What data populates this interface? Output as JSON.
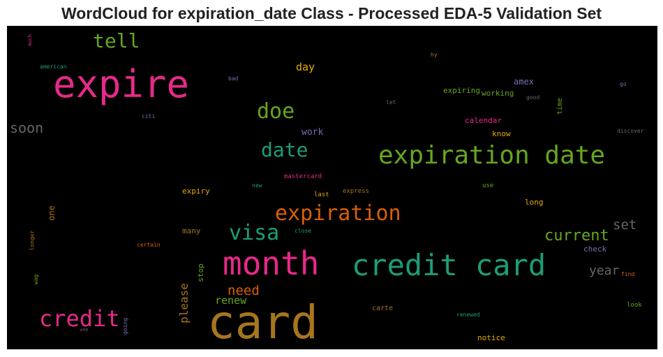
{
  "chart_data": {
    "type": "wordcloud",
    "title": "WordCloud for expiration_date Class - Processed EDA-5 Validation Set",
    "background": "#000000",
    "words": [
      {
        "text": "card",
        "color": "#a6761d"
      },
      {
        "text": "expire",
        "color": "#e7298a"
      },
      {
        "text": "credit card",
        "color": "#1b9e77"
      },
      {
        "text": "month",
        "color": "#e7298a"
      },
      {
        "text": "expiration date",
        "color": "#66a61e"
      },
      {
        "text": "expiration",
        "color": "#d95f02"
      },
      {
        "text": "credit",
        "color": "#e7298a"
      },
      {
        "text": "visa",
        "color": "#1b9e77"
      },
      {
        "text": "date",
        "color": "#1b9e77"
      },
      {
        "text": "doe",
        "color": "#66a61e"
      },
      {
        "text": "tell",
        "color": "#66a61e"
      },
      {
        "text": "current",
        "color": "#66a61e"
      },
      {
        "text": "soon",
        "color": "#666666"
      },
      {
        "text": "set",
        "color": "#666666"
      },
      {
        "text": "need",
        "color": "#d95f02"
      },
      {
        "text": "year",
        "color": "#666666"
      },
      {
        "text": "please",
        "color": "#a6761d"
      },
      {
        "text": "renew",
        "color": "#66a61e"
      },
      {
        "text": "day",
        "color": "#e6ab02"
      },
      {
        "text": "work",
        "color": "#7570b3"
      },
      {
        "text": "amex",
        "color": "#7570b3"
      },
      {
        "text": "expiring",
        "color": "#66a61e"
      },
      {
        "text": "working",
        "color": "#66a61e"
      },
      {
        "text": "calendar",
        "color": "#e7298a"
      },
      {
        "text": "know",
        "color": "#e6ab02"
      },
      {
        "text": "long",
        "color": "#e6ab02"
      },
      {
        "text": "check",
        "color": "#7570b3"
      },
      {
        "text": "one",
        "color": "#a6761d"
      },
      {
        "text": "expiry",
        "color": "#e6ab02"
      },
      {
        "text": "many",
        "color": "#a6761d"
      },
      {
        "text": "stop",
        "color": "#66a61e"
      },
      {
        "text": "carte",
        "color": "#a6761d"
      },
      {
        "text": "notice",
        "color": "#e6ab02"
      },
      {
        "text": "time",
        "color": "#66a61e"
      },
      {
        "text": "mastercard",
        "color": "#e7298a"
      },
      {
        "text": "last",
        "color": "#e6ab02"
      },
      {
        "text": "express",
        "color": "#a6761d"
      },
      {
        "text": "use",
        "color": "#66a61e"
      },
      {
        "text": "new",
        "color": "#1b9e77"
      },
      {
        "text": "close",
        "color": "#1b9e77"
      },
      {
        "text": "certain",
        "color": "#d95f02"
      },
      {
        "text": "find",
        "color": "#d95f02"
      },
      {
        "text": "look",
        "color": "#66a61e"
      },
      {
        "text": "renewed",
        "color": "#1b9e77"
      },
      {
        "text": "good",
        "color": "#666666"
      },
      {
        "text": "let",
        "color": "#666666"
      },
      {
        "text": "hy",
        "color": "#a6761d"
      },
      {
        "text": "go",
        "color": "#7570b3"
      },
      {
        "text": "discover",
        "color": "#666666"
      },
      {
        "text": "bad",
        "color": "#7570b3"
      },
      {
        "text": "citi",
        "color": "#7570b3"
      },
      {
        "text": "american",
        "color": "#1b9e77"
      },
      {
        "text": "much",
        "color": "#e7298a"
      },
      {
        "text": "longer",
        "color": "#a6761d"
      },
      {
        "text": "wag",
        "color": "#66a61e"
      },
      {
        "text": "going",
        "color": "#7570b3"
      },
      {
        "text": "vee",
        "color": "#666666"
      }
    ]
  }
}
